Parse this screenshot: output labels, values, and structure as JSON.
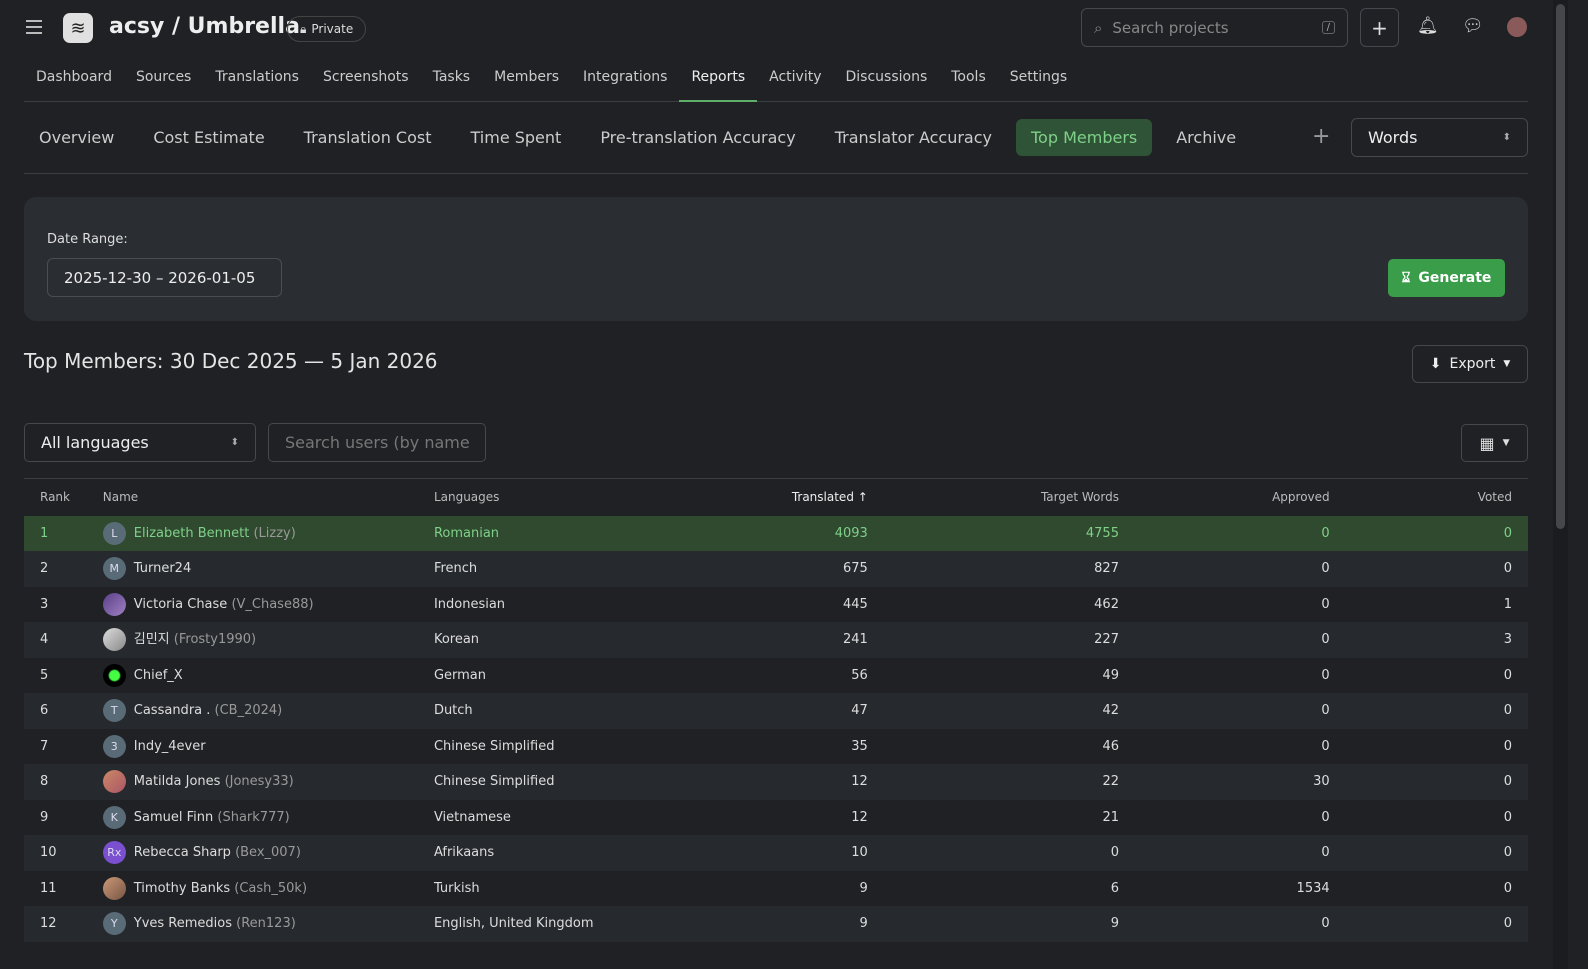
{
  "header": {
    "project": "acsy / Umbrella",
    "visibility": "Private",
    "search_placeholder": "Search projects",
    "search_shortcut": "/"
  },
  "nav": [
    "Dashboard",
    "Sources",
    "Translations",
    "Screenshots",
    "Tasks",
    "Members",
    "Integrations",
    "Reports",
    "Activity",
    "Discussions",
    "Tools",
    "Settings"
  ],
  "nav_active": "Reports",
  "subnav": [
    "Overview",
    "Cost Estimate",
    "Translation Cost",
    "Time Spent",
    "Pre-translation Accuracy",
    "Translator Accuracy",
    "Top Members",
    "Archive"
  ],
  "subnav_active": "Top Members",
  "unit_select": "Words",
  "filters": {
    "date_range_label": "Date Range:",
    "date_range": "2025-12-30 – 2026-01-05",
    "generate": "Generate"
  },
  "report": {
    "title": "Top Members: 30 Dec 2025 — 5 Jan 2026",
    "export": "Export",
    "language_select": "All languages",
    "user_search_placeholder": "Search users (by name"
  },
  "table": {
    "headers": [
      "Rank",
      "Name",
      "Languages",
      "Translated",
      "Target Words",
      "Approved",
      "Voted"
    ],
    "sort_column": "Translated",
    "sort_dir": "asc",
    "rows": [
      {
        "rank": "1",
        "avatar": "L",
        "name": "Elizabeth Bennett",
        "user": "(Lizzy)",
        "lang": "Romanian",
        "translated": "4093",
        "target": "4755",
        "approved": "0",
        "voted": "0"
      },
      {
        "rank": "2",
        "avatar": "M",
        "name": "Turner24",
        "user": "",
        "lang": "French",
        "translated": "675",
        "target": "827",
        "approved": "0",
        "voted": "0"
      },
      {
        "rank": "3",
        "avatar": "",
        "name": "Victoria Chase",
        "user": "(V_Chase88)",
        "lang": "Indonesian",
        "translated": "445",
        "target": "462",
        "approved": "0",
        "voted": "1"
      },
      {
        "rank": "4",
        "avatar": "",
        "name": "김민지",
        "user": "(Frosty1990)",
        "lang": "Korean",
        "translated": "241",
        "target": "227",
        "approved": "0",
        "voted": "3"
      },
      {
        "rank": "5",
        "avatar": "",
        "name": "Chief_X",
        "user": "",
        "lang": "German",
        "translated": "56",
        "target": "49",
        "approved": "0",
        "voted": "0"
      },
      {
        "rank": "6",
        "avatar": "T",
        "name": "Cassandra .",
        "user": "(CB_2024)",
        "lang": "Dutch",
        "translated": "47",
        "target": "42",
        "approved": "0",
        "voted": "0"
      },
      {
        "rank": "7",
        "avatar": "3",
        "name": "Indy_4ever",
        "user": "",
        "lang": "Chinese Simplified",
        "translated": "35",
        "target": "46",
        "approved": "0",
        "voted": "0"
      },
      {
        "rank": "8",
        "avatar": "",
        "name": "Matilda Jones",
        "user": "(Jonesy33)",
        "lang": "Chinese Simplified",
        "translated": "12",
        "target": "22",
        "approved": "30",
        "voted": "0"
      },
      {
        "rank": "9",
        "avatar": "K",
        "name": "Samuel Finn",
        "user": "(Shark777)",
        "lang": "Vietnamese",
        "translated": "12",
        "target": "21",
        "approved": "0",
        "voted": "0"
      },
      {
        "rank": "10",
        "avatar": "Rx",
        "name": "Rebecca Sharp",
        "user": "(Bex_007)",
        "lang": "Afrikaans",
        "translated": "10",
        "target": "0",
        "approved": "0",
        "voted": "0"
      },
      {
        "rank": "11",
        "avatar": "",
        "name": "Timothy Banks",
        "user": "(Cash_50k)",
        "lang": "Turkish",
        "translated": "9",
        "target": "6",
        "approved": "1534",
        "voted": "0"
      },
      {
        "rank": "12",
        "avatar": "Y",
        "name": "Yves Remedios",
        "user": "(Ren123)",
        "lang": "English, United Kingdom",
        "translated": "9",
        "target": "9",
        "approved": "0",
        "voted": "0"
      }
    ]
  },
  "colors": {
    "accent": "#3a9d4a",
    "highlight_text": "#7fd089"
  }
}
